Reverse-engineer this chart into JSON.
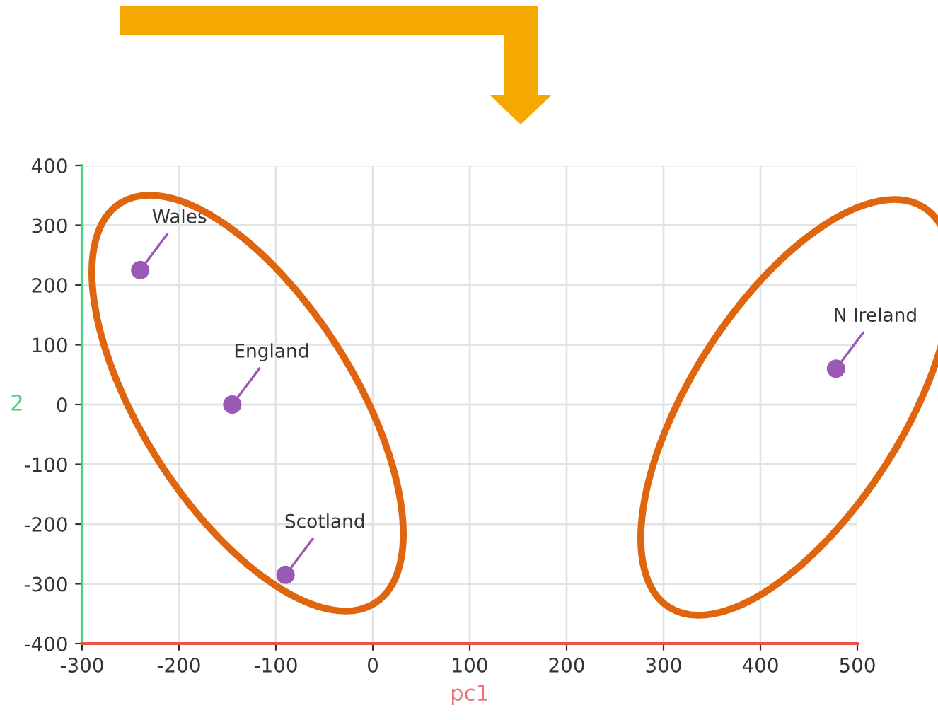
{
  "chart_data": {
    "type": "scatter",
    "xlabel": "pc1",
    "ylabel": "2",
    "x": [
      -240,
      -145,
      -90,
      478
    ],
    "values": [
      225,
      0,
      -285,
      60
    ],
    "color": "#9b59b6",
    "marker": "circle",
    "xlim": [
      -300,
      500
    ],
    "ylim": [
      -400,
      400
    ],
    "xticks": [
      -300,
      -200,
      -100,
      0,
      100,
      200,
      300,
      400,
      500
    ],
    "yticks": [
      -400,
      -300,
      -200,
      -100,
      0,
      100,
      200,
      300,
      400
    ],
    "grid": true,
    "annotations": [
      {
        "text": "Wales",
        "x": -240,
        "y": 225
      },
      {
        "text": "England",
        "x": -145,
        "y": 0
      },
      {
        "text": "Scotland",
        "x": -90,
        "y": -285
      },
      {
        "text": "N Ireland",
        "x": 478,
        "y": 60
      }
    ]
  }
}
